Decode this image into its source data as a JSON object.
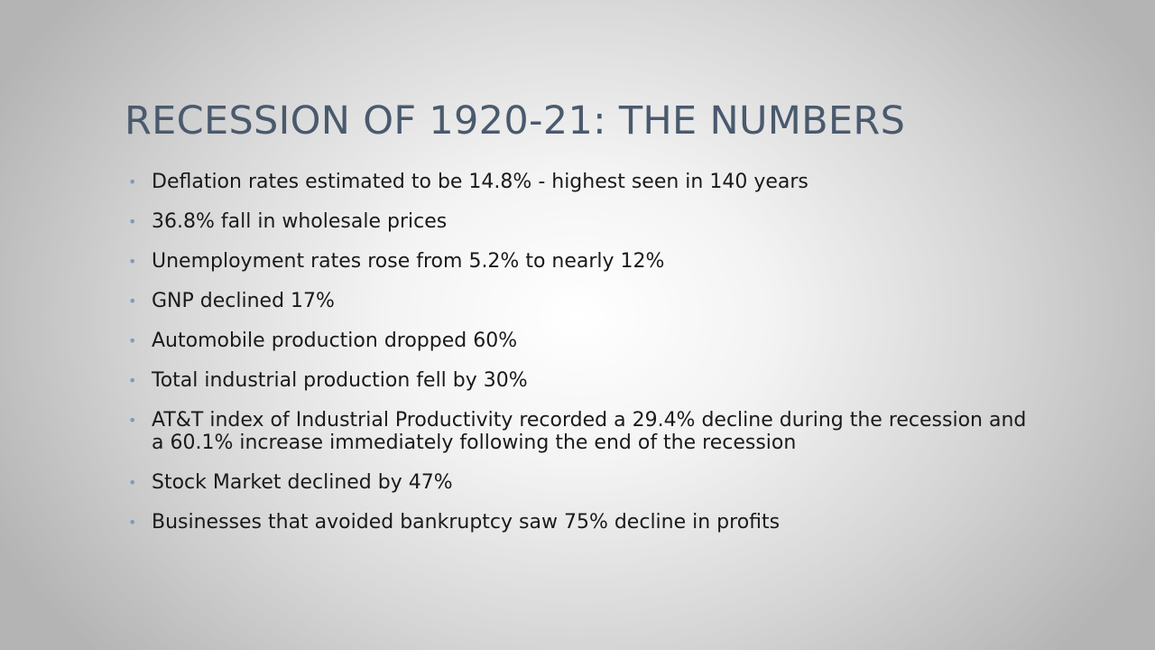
{
  "slide": {
    "title": "RECESSION OF 1920-21: THE NUMBERS",
    "bullet_color": "#7d9bc0",
    "title_color": "#4a5a6e",
    "bullets": [
      "Deflation rates estimated to be 14.8%  - highest seen in 140 years",
      "36.8% fall in wholesale prices",
      "Unemployment rates rose from 5.2% to nearly 12%",
      "GNP declined 17%",
      "Automobile production dropped 60%",
      "Total industrial production fell by 30%",
      "AT&T index of Industrial Productivity recorded a 29.4% decline during the recession and a 60.1% increase immediately following the end of the recession",
      "Stock Market declined by 47%",
      "Businesses that avoided bankruptcy saw 75% decline in profits"
    ]
  }
}
